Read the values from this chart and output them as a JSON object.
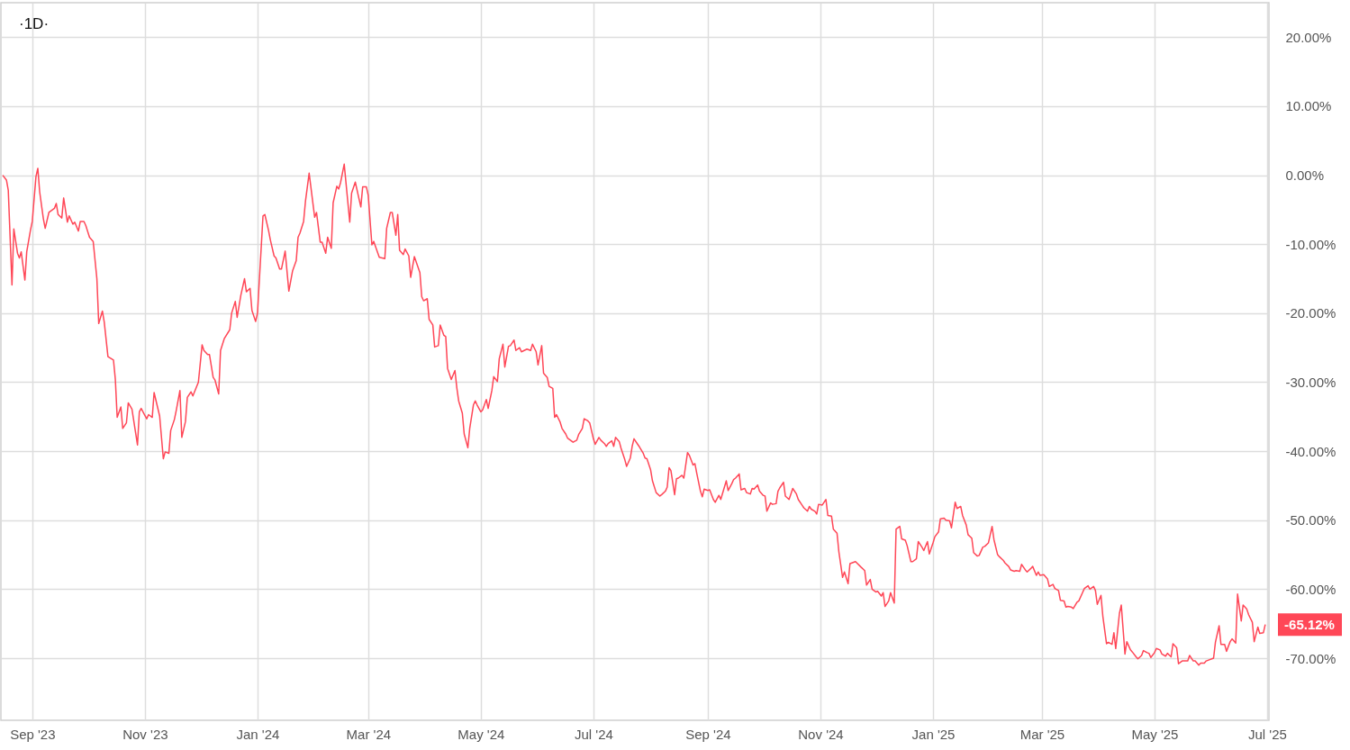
{
  "chart_data": {
    "type": "line",
    "title": "·1D·",
    "x": [
      "2023-08-16",
      "2023-08-18",
      "2023-08-19",
      "2023-08-21",
      "2023-08-22",
      "2023-08-24",
      "2023-08-25",
      "2023-08-26",
      "2023-08-28",
      "2023-08-29",
      "2023-08-31",
      "2023-09-01",
      "2023-09-03",
      "2023-09-04",
      "2023-09-05",
      "2023-09-07",
      "2023-09-08",
      "2023-09-10",
      "2023-09-13",
      "2023-09-14",
      "2023-09-15",
      "2023-09-17",
      "2023-09-18",
      "2023-09-20",
      "2023-09-21",
      "2023-09-23",
      "2023-09-24",
      "2023-09-26",
      "2023-09-27",
      "2023-09-29",
      "2023-09-30",
      "2023-10-02",
      "2023-10-04",
      "2023-10-06",
      "2023-10-07",
      "2023-10-09",
      "2023-10-10",
      "2023-10-12",
      "2023-10-15",
      "2023-10-16",
      "2023-10-17",
      "2023-10-19",
      "2023-10-20",
      "2023-10-22",
      "2023-10-23",
      "2023-10-25",
      "2023-10-28",
      "2023-10-29",
      "2023-10-30",
      "2023-11-01",
      "2023-11-02",
      "2023-11-03",
      "2023-11-05",
      "2023-11-06",
      "2023-11-09",
      "2023-11-11",
      "2023-11-12",
      "2023-11-14",
      "2023-11-15",
      "2023-11-17",
      "2023-11-18",
      "2023-11-20",
      "2023-11-21",
      "2023-11-23",
      "2023-11-24",
      "2023-11-26",
      "2023-11-27",
      "2023-11-30",
      "2023-12-02",
      "2023-12-03",
      "2023-12-05",
      "2023-12-06",
      "2023-12-08",
      "2023-12-09",
      "2023-12-11",
      "2023-12-12",
      "2023-12-14",
      "2023-12-17",
      "2023-12-18",
      "2023-12-20",
      "2023-12-21",
      "2023-12-23",
      "2023-12-25",
      "2023-12-26",
      "2023-12-28",
      "2023-12-29",
      "2023-12-31",
      "2024-01-01",
      "2024-01-04",
      "2024-01-05",
      "2024-01-07",
      "2024-01-08",
      "2024-01-10",
      "2024-01-11",
      "2024-01-13",
      "2024-01-14",
      "2024-01-16",
      "2024-01-18",
      "2024-01-20",
      "2024-01-22",
      "2024-01-23",
      "2024-01-24",
      "2024-01-26",
      "2024-01-27",
      "2024-01-29",
      "2024-02-01",
      "2024-02-02",
      "2024-02-04",
      "2024-02-05",
      "2024-02-07",
      "2024-02-08",
      "2024-02-10",
      "2024-02-11",
      "2024-02-13",
      "2024-02-14",
      "2024-02-15",
      "2024-02-17",
      "2024-02-20",
      "2024-02-21",
      "2024-02-23",
      "2024-02-26",
      "2024-02-27",
      "2024-02-29",
      "2024-03-01",
      "2024-03-03",
      "2024-03-04",
      "2024-03-07",
      "2024-03-10",
      "2024-03-11",
      "2024-03-13",
      "2024-03-14",
      "2024-03-16",
      "2024-03-17",
      "2024-03-18",
      "2024-03-20",
      "2024-03-21",
      "2024-03-23",
      "2024-03-24",
      "2024-03-26",
      "2024-03-29",
      "2024-03-30",
      "2024-03-31",
      "2024-04-02",
      "2024-04-03",
      "2024-04-05",
      "2024-04-06",
      "2024-04-08",
      "2024-04-09",
      "2024-04-11",
      "2024-04-12",
      "2024-04-13",
      "2024-04-15",
      "2024-04-17",
      "2024-04-18",
      "2024-04-19",
      "2024-04-21",
      "2024-04-22",
      "2024-04-24",
      "2024-04-25",
      "2024-04-27",
      "2024-04-28",
      "2024-04-29",
      "2024-05-01",
      "2024-05-02",
      "2024-05-04",
      "2024-05-05",
      "2024-05-07",
      "2024-05-08",
      "2024-05-10",
      "2024-05-11",
      "2024-05-13",
      "2024-05-14",
      "2024-05-16",
      "2024-05-17",
      "2024-05-19",
      "2024-05-20",
      "2024-05-22",
      "2024-05-23",
      "2024-05-26",
      "2024-05-28",
      "2024-05-29",
      "2024-05-31",
      "2024-06-01",
      "2024-06-03",
      "2024-06-04",
      "2024-06-06",
      "2024-06-07",
      "2024-06-09",
      "2024-06-10",
      "2024-06-11",
      "2024-06-13",
      "2024-06-14",
      "2024-06-16",
      "2024-06-17",
      "2024-06-19",
      "2024-06-20",
      "2024-06-22",
      "2024-06-23",
      "2024-06-25",
      "2024-06-26",
      "2024-06-28",
      "2024-06-29",
      "2024-07-01",
      "2024-07-02",
      "2024-07-04",
      "2024-07-05",
      "2024-07-07",
      "2024-07-08",
      "2024-07-09",
      "2024-07-11",
      "2024-07-12",
      "2024-07-13",
      "2024-07-15",
      "2024-07-16",
      "2024-07-18",
      "2024-07-19",
      "2024-07-21",
      "2024-07-22",
      "2024-07-23",
      "2024-07-25",
      "2024-07-26",
      "2024-07-28",
      "2024-07-29",
      "2024-07-30",
      "2024-08-01",
      "2024-08-02",
      "2024-08-04",
      "2024-08-06",
      "2024-08-07",
      "2024-08-09",
      "2024-08-10",
      "2024-08-11",
      "2024-08-12",
      "2024-08-14",
      "2024-08-15",
      "2024-08-16",
      "2024-08-18",
      "2024-08-19",
      "2024-08-21",
      "2024-08-22",
      "2024-08-24",
      "2024-08-25",
      "2024-08-26",
      "2024-08-28",
      "2024-08-29",
      "2024-08-30",
      "2024-09-01",
      "2024-09-02",
      "2024-09-04",
      "2024-09-05",
      "2024-09-07",
      "2024-09-08",
      "2024-09-11",
      "2024-09-12",
      "2024-09-14",
      "2024-09-15",
      "2024-09-16",
      "2024-09-18",
      "2024-09-19",
      "2024-09-21",
      "2024-09-22",
      "2024-09-24",
      "2024-09-25",
      "2024-09-26",
      "2024-09-28",
      "2024-09-29",
      "2024-10-01",
      "2024-10-02",
      "2024-10-03",
      "2024-10-05",
      "2024-10-06",
      "2024-10-08",
      "2024-10-09",
      "2024-10-10",
      "2024-10-12",
      "2024-10-13",
      "2024-10-15",
      "2024-10-16",
      "2024-10-17",
      "2024-10-19",
      "2024-10-20",
      "2024-10-22",
      "2024-10-23",
      "2024-10-25",
      "2024-10-26",
      "2024-10-27",
      "2024-10-29",
      "2024-10-30",
      "2024-10-31",
      "2024-11-02",
      "2024-11-04",
      "2024-11-05",
      "2024-11-07",
      "2024-11-08",
      "2024-11-10",
      "2024-11-11",
      "2024-11-13",
      "2024-11-14",
      "2024-11-16",
      "2024-11-17",
      "2024-11-20",
      "2024-11-23",
      "2024-11-25",
      "2024-11-26",
      "2024-11-28",
      "2024-11-29",
      "2024-12-01",
      "2024-12-02",
      "2024-12-04",
      "2024-12-05",
      "2024-12-06",
      "2024-12-08",
      "2024-12-09",
      "2024-12-11",
      "2024-12-12",
      "2024-12-14",
      "2024-12-15",
      "2024-12-17",
      "2024-12-18",
      "2024-12-20",
      "2024-12-21",
      "2024-12-23",
      "2024-12-24",
      "2024-12-26",
      "2024-12-27",
      "2024-12-29",
      "2024-12-30",
      "2025-01-01",
      "2025-01-02",
      "2025-01-04",
      "2025-01-05",
      "2025-01-07",
      "2025-01-08",
      "2025-01-10",
      "2025-01-11",
      "2025-01-13",
      "2025-01-14",
      "2025-01-16",
      "2025-01-17",
      "2025-01-19",
      "2025-01-20",
      "2025-01-22",
      "2025-01-23",
      "2025-01-25",
      "2025-01-26",
      "2025-01-28",
      "2025-01-29",
      "2025-01-31",
      "2025-02-02",
      "2025-02-03",
      "2025-02-05",
      "2025-02-06",
      "2025-02-08",
      "2025-02-09",
      "2025-02-11",
      "2025-02-12",
      "2025-02-14",
      "2025-02-15",
      "2025-02-17",
      "2025-02-18",
      "2025-02-20",
      "2025-02-21",
      "2025-02-23",
      "2025-02-24",
      "2025-02-26",
      "2025-02-27",
      "2025-02-28",
      "2025-03-02",
      "2025-03-04",
      "2025-03-05",
      "2025-03-07",
      "2025-03-08",
      "2025-03-10",
      "2025-03-11",
      "2025-03-13",
      "2025-03-14",
      "2025-03-15",
      "2025-03-17",
      "2025-03-18",
      "2025-03-20",
      "2025-03-21",
      "2025-03-23",
      "2025-03-24",
      "2025-03-26",
      "2025-03-27",
      "2025-03-29",
      "2025-03-30",
      "2025-03-31",
      "2025-04-02",
      "2025-04-03",
      "2025-04-05",
      "2025-04-06",
      "2025-04-08",
      "2025-04-09",
      "2025-04-10",
      "2025-04-12",
      "2025-04-13",
      "2025-04-15",
      "2025-04-16",
      "2025-04-18",
      "2025-04-19",
      "2025-04-21",
      "2025-04-22",
      "2025-04-24",
      "2025-04-25",
      "2025-04-27",
      "2025-04-28",
      "2025-04-29",
      "2025-05-01",
      "2025-05-02",
      "2025-05-04",
      "2025-05-05",
      "2025-05-07",
      "2025-05-08",
      "2025-05-10",
      "2025-05-11",
      "2025-05-13",
      "2025-05-14",
      "2025-05-16",
      "2025-05-17",
      "2025-05-19",
      "2025-05-20",
      "2025-05-22",
      "2025-05-23",
      "2025-05-25",
      "2025-05-26",
      "2025-05-28",
      "2025-05-29",
      "2025-06-02",
      "2025-06-03",
      "2025-06-05",
      "2025-06-06",
      "2025-06-08",
      "2025-06-09",
      "2025-06-11",
      "2025-06-12",
      "2025-06-14",
      "2025-06-15",
      "2025-06-17",
      "2025-06-18",
      "2025-06-20",
      "2025-06-21",
      "2025-06-23",
      "2025-06-24",
      "2025-06-26",
      "2025-06-27",
      "2025-06-29",
      "2025-06-30"
    ],
    "series": [
      {
        "color": "#ff4757",
        "values": [
          0.0,
          -0.7,
          -2.2,
          -15.9,
          -7.8,
          -11.3,
          -12.0,
          -11.1,
          -15.2,
          -11.1,
          -8.0,
          -6.7,
          -0.2,
          1.0,
          -2.4,
          -6.3,
          -7.7,
          -5.4,
          -4.8,
          -4.1,
          -5.7,
          -6.2,
          -3.3,
          -6.8,
          -5.9,
          -7.1,
          -6.8,
          -8.1,
          -6.7,
          -6.7,
          -7.3,
          -9.0,
          -9.6,
          -15.0,
          -21.5,
          -19.7,
          -21.3,
          -26.3,
          -26.8,
          -29.6,
          -35.1,
          -33.6,
          -36.7,
          -35.9,
          -33.0,
          -33.9,
          -39.1,
          -34.3,
          -33.8,
          -34.8,
          -35.3,
          -34.7,
          -35.1,
          -31.5,
          -34.9,
          -41.1,
          -40.1,
          -40.3,
          -37.0,
          -35.4,
          -34.1,
          -31.2,
          -38.0,
          -35.7,
          -32.2,
          -31.4,
          -32.0,
          -30.0,
          -24.6,
          -25.4,
          -26.0,
          -26.0,
          -29.3,
          -29.7,
          -31.7,
          -25.4,
          -23.7,
          -22.4,
          -20.0,
          -18.3,
          -20.6,
          -17.4,
          -15.0,
          -16.9,
          -16.4,
          -19.6,
          -21.2,
          -20.0,
          -5.9,
          -5.7,
          -8.0,
          -9.4,
          -11.7,
          -12.0,
          -13.6,
          -13.6,
          -11.0,
          -16.8,
          -13.9,
          -12.4,
          -9.0,
          -8.4,
          -6.7,
          -3.8,
          0.3,
          -6.1,
          -5.4,
          -9.7,
          -9.7,
          -11.3,
          -9.0,
          -10.6,
          -4.0,
          -1.6,
          -2.0,
          -1.1,
          1.6,
          -6.8,
          -2.6,
          -1.0,
          -4.6,
          -1.7,
          -1.7,
          -2.9,
          -10.1,
          -9.6,
          -11.9,
          -12.1,
          -7.7,
          -5.4,
          -5.4,
          -8.7,
          -5.7,
          -10.9,
          -11.5,
          -10.7,
          -11.7,
          -14.8,
          -11.8,
          -14.1,
          -17.6,
          -18.2,
          -17.9,
          -20.9,
          -21.7,
          -24.9,
          -24.7,
          -21.7,
          -23.2,
          -23.4,
          -28.0,
          -29.6,
          -28.3,
          -30.8,
          -32.7,
          -34.5,
          -37.5,
          -39.5,
          -36.7,
          -33.3,
          -32.7,
          -33.3,
          -34.3,
          -34.0,
          -32.5,
          -33.8,
          -31.2,
          -29.2,
          -29.9,
          -26.6,
          -24.5,
          -27.8,
          -24.8,
          -24.7,
          -23.9,
          -25.4,
          -25.0,
          -25.6,
          -25.2,
          -25.4,
          -24.5,
          -25.6,
          -27.5,
          -24.7,
          -28.7,
          -29.3,
          -30.6,
          -30.9,
          -35.1,
          -34.7,
          -35.8,
          -36.7,
          -37.5,
          -38.1,
          -38.5,
          -38.7,
          -38.4,
          -37.6,
          -36.7,
          -35.3,
          -35.6,
          -35.9,
          -38.2,
          -39.0,
          -38.0,
          -38.4,
          -38.9,
          -39.3,
          -38.9,
          -38.5,
          -39.3,
          -38.0,
          -38.6,
          -39.6,
          -41.2,
          -42.2,
          -41.0,
          -39.3,
          -38.2,
          -39.0,
          -39.4,
          -40.3,
          -41.0,
          -41.1,
          -42.7,
          -44.3,
          -46.0,
          -46.5,
          -46.3,
          -45.8,
          -45.2,
          -42.4,
          -42.8,
          -46.3,
          -44.0,
          -43.9,
          -43.5,
          -43.9,
          -40.2,
          -40.6,
          -42.0,
          -41.8,
          -43.2,
          -45.8,
          -46.6,
          -45.5,
          -45.7,
          -45.6,
          -47.0,
          -47.4,
          -46.4,
          -47.0,
          -44.3,
          -45.7,
          -44.7,
          -44.1,
          -43.9,
          -43.3,
          -45.6,
          -45.4,
          -46.0,
          -46.2,
          -45.4,
          -45.5,
          -44.9,
          -45.8,
          -46.4,
          -46.5,
          -48.7,
          -47.5,
          -47.7,
          -47.6,
          -45.8,
          -45.3,
          -44.5,
          -46.5,
          -47.0,
          -46.2,
          -45.4,
          -46.2,
          -47.0,
          -47.8,
          -48.2,
          -48.7,
          -48.0,
          -48.4,
          -48.7,
          -49.1,
          -47.7,
          -47.8,
          -47.0,
          -49.3,
          -49.4,
          -51.3,
          -51.9,
          -54.6,
          -58.3,
          -57.5,
          -59.2,
          -56.3,
          -56.0,
          -56.8,
          -57.3,
          -59.4,
          -58.6,
          -60.0,
          -60.4,
          -60.3,
          -61.0,
          -60.5,
          -62.5,
          -61.7,
          -60.5,
          -62.0,
          -51.3,
          -50.9,
          -52.7,
          -52.9,
          -53.7,
          -56.0,
          -56.0,
          -55.6,
          -53.1,
          -53.9,
          -54.4,
          -53.1,
          -54.9,
          -53.3,
          -52.4,
          -51.7,
          -49.8,
          -49.7,
          -50.0,
          -50.1,
          -51.1,
          -47.4,
          -48.3,
          -48.0,
          -49.3,
          -50.7,
          -52.1,
          -52.6,
          -54.7,
          -55.2,
          -55.1,
          -53.9,
          -53.8,
          -53.3,
          -50.9,
          -52.8,
          -55.0,
          -55.3,
          -55.8,
          -56.2,
          -56.7,
          -57.2,
          -57.4,
          -57.3,
          -57.4,
          -56.4,
          -57.2,
          -57.5,
          -57.0,
          -56.7,
          -58.0,
          -57.5,
          -58.0,
          -57.9,
          -58.5,
          -59.6,
          -59.3,
          -59.9,
          -60.2,
          -61.6,
          -61.7,
          -62.6,
          -62.5,
          -62.6,
          -62.8,
          -61.9,
          -61.7,
          -60.5,
          -59.9,
          -59.5,
          -60.0,
          -59.6,
          -60.2,
          -62.2,
          -60.9,
          -63.9,
          -67.9,
          -67.7,
          -68.0,
          -66.3,
          -68.6,
          -63.5,
          -62.3,
          -69.4,
          -67.6,
          -68.8,
          -69.1,
          -69.8,
          -70.1,
          -69.6,
          -68.9,
          -69.2,
          -69.3,
          -69.9,
          -69.2,
          -68.6,
          -68.8,
          -69.4,
          -69.7,
          -69.3,
          -69.8,
          -67.9,
          -68.5,
          -70.8,
          -70.4,
          -70.4,
          -70.4,
          -69.6,
          -70.4,
          -70.4,
          -71.0,
          -70.7,
          -70.7,
          -70.4,
          -70.0,
          -67.7,
          -65.3,
          -68.0,
          -68.0,
          -69.0,
          -67.6,
          -67.2,
          -67.8,
          -60.7,
          -64.6,
          -62.3,
          -62.9,
          -63.7,
          -64.8,
          -67.6,
          -65.5,
          -66.4,
          -66.3,
          -65.12
        ]
      }
    ],
    "xlim": [
      "2023-08-15",
      "2025-07-02"
    ],
    "xticks": [
      {
        "value": "2023-09-01",
        "label": "Sep '23"
      },
      {
        "value": "2023-11-01",
        "label": "Nov '23"
      },
      {
        "value": "2024-01-01",
        "label": "Jan '24"
      },
      {
        "value": "2024-03-01",
        "label": "Mar '24"
      },
      {
        "value": "2024-05-01",
        "label": "May '24"
      },
      {
        "value": "2024-07-01",
        "label": "Jul '24"
      },
      {
        "value": "2024-09-01",
        "label": "Sep '24"
      },
      {
        "value": "2024-11-01",
        "label": "Nov '24"
      },
      {
        "value": "2025-01-01",
        "label": "Jan '25"
      },
      {
        "value": "2025-03-01",
        "label": "Mar '25"
      },
      {
        "value": "2025-05-01",
        "label": "May '25"
      },
      {
        "value": "2025-07-01",
        "label": "Jul '25"
      }
    ],
    "ylim": [
      -79,
      25
    ],
    "yticks": [
      {
        "value": 20,
        "label": "20.00%"
      },
      {
        "value": 10,
        "label": "10.00%"
      },
      {
        "value": 0,
        "label": "0.00%"
      },
      {
        "value": -10,
        "label": "-10.00%"
      },
      {
        "value": -20,
        "label": "-20.00%"
      },
      {
        "value": -30,
        "label": "-30.00%"
      },
      {
        "value": -40,
        "label": "-40.00%"
      },
      {
        "value": -50,
        "label": "-50.00%"
      },
      {
        "value": -60,
        "label": "-60.00%"
      },
      {
        "value": -70,
        "label": "-70.00%"
      }
    ],
    "grid": true,
    "line_style": "solid",
    "annotations": [
      "-65.12%"
    ]
  }
}
